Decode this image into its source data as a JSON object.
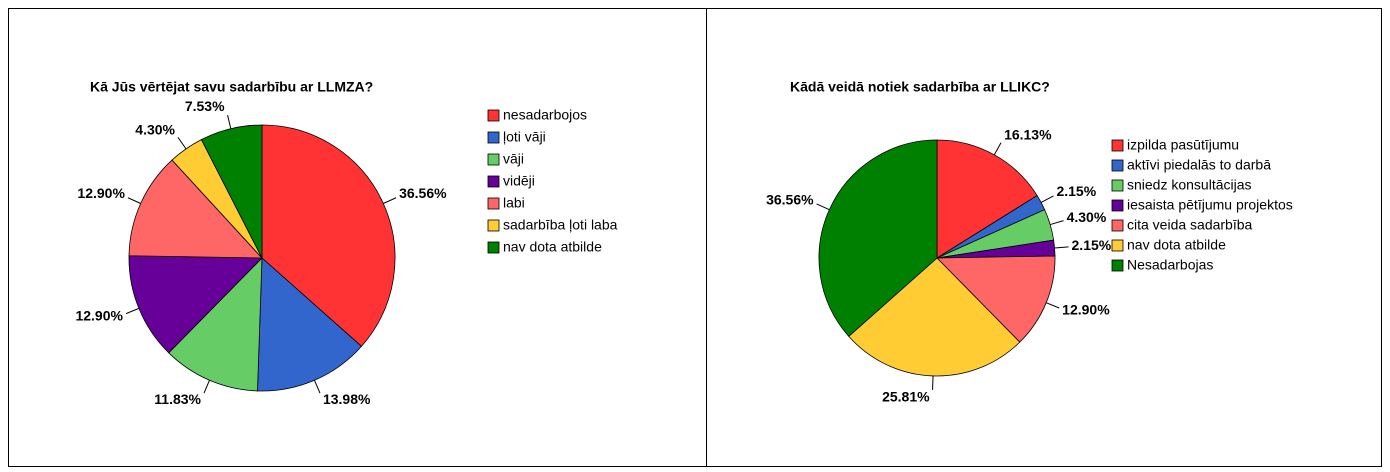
{
  "chart_data": [
    {
      "type": "pie",
      "title": "Kā Jūs vērtējat savu sadarbību ar LLMZA?",
      "categories": [
        "nesadarbojos",
        "ļoti vāji",
        "vāji",
        "vidēji",
        "labi",
        "sadarbība ļoti laba",
        "nav dota atbilde"
      ],
      "values": [
        36.56,
        13.98,
        11.83,
        12.9,
        12.9,
        4.3,
        7.53
      ],
      "value_labels": [
        "36.56%",
        "13.98%",
        "11.83%",
        "12.90%",
        "12.90%",
        "4.30%",
        "7.53%"
      ],
      "colors": [
        "#ff3333",
        "#3366cc",
        "#66cc66",
        "#660099",
        "#ff6666",
        "#ffcc33",
        "#008000"
      ],
      "legend": "right"
    },
    {
      "type": "pie",
      "title": "Kādā veidā notiek sadarbība ar LLIKC?",
      "categories": [
        "izpilda pasūtījumu",
        "aktīvi piedalās to darbā",
        "sniedz konsultācijas",
        "iesaista pētījumu projektos",
        "cita veida sadarbība",
        "nav dota atbilde",
        "Nesadarbojas"
      ],
      "values": [
        16.13,
        2.15,
        4.3,
        2.15,
        12.9,
        25.81,
        36.56
      ],
      "value_labels": [
        "16.13%",
        "2.15%",
        "4.30%",
        "2.15%",
        "12.90%",
        "25.81%",
        "36.56%"
      ],
      "colors": [
        "#ff3333",
        "#3366cc",
        "#66cc66",
        "#660099",
        "#ff6666",
        "#ffcc33",
        "#008000"
      ],
      "legend": "right"
    }
  ]
}
